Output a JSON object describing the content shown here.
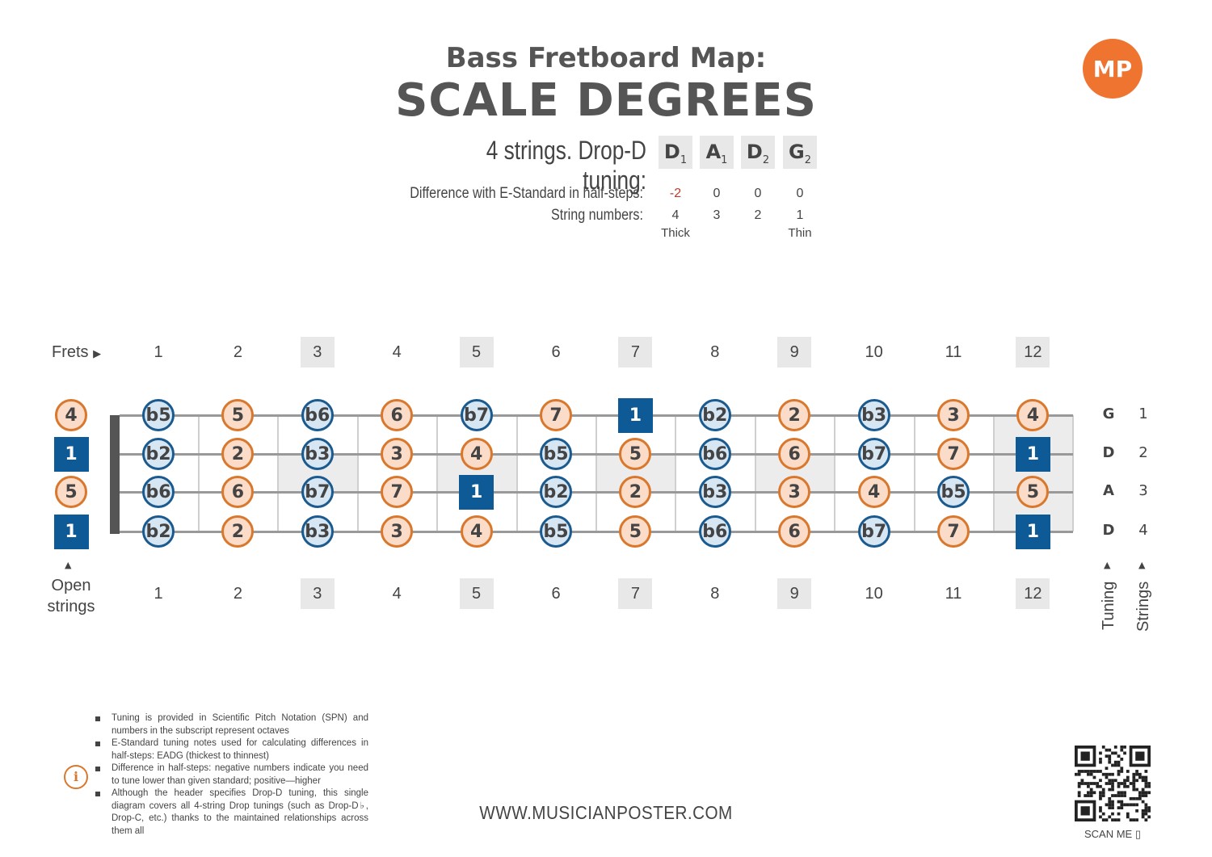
{
  "header": {
    "subtitle": "Bass Fretboard Map:",
    "title": "SCALE DEGREES",
    "logo_text": "MP",
    "tuning_label": "4 strings. Drop-D tuning:",
    "tuning_notes": [
      {
        "note": "D",
        "octave": "1"
      },
      {
        "note": "A",
        "octave": "1"
      },
      {
        "note": "D",
        "octave": "2"
      },
      {
        "note": "G",
        "octave": "2"
      }
    ],
    "difference_label": "Difference with E-Standard in half-steps:",
    "differences": [
      "-2",
      "0",
      "0",
      "0"
    ],
    "string_numbers_label": "String numbers:",
    "string_numbers": [
      "4",
      "3",
      "2",
      "1"
    ],
    "thick_label": "Thick",
    "thin_label": "Thin"
  },
  "fretboard": {
    "frets_label": "Frets",
    "fret_numbers": [
      "1",
      "2",
      "3",
      "4",
      "5",
      "6",
      "7",
      "8",
      "9",
      "10",
      "11",
      "12"
    ],
    "dotted_frets": [
      "3",
      "5",
      "7",
      "9",
      "12"
    ],
    "open_strings_label_1": "Open",
    "open_strings_label_2": "strings",
    "strings": [
      {
        "tuning": "G",
        "number": "1",
        "open": "4",
        "notes": [
          "b5",
          "5",
          "b6",
          "6",
          "b7",
          "7",
          "1",
          "b2",
          "2",
          "b3",
          "3",
          "4"
        ]
      },
      {
        "tuning": "D",
        "number": "2",
        "open": "1",
        "notes": [
          "b2",
          "2",
          "b3",
          "3",
          "4",
          "b5",
          "5",
          "b6",
          "6",
          "b7",
          "7",
          "1"
        ]
      },
      {
        "tuning": "A",
        "number": "3",
        "open": "5",
        "notes": [
          "b6",
          "6",
          "b7",
          "7",
          "1",
          "b2",
          "2",
          "b3",
          "3",
          "4",
          "b5",
          "5"
        ]
      },
      {
        "tuning": "D",
        "number": "4",
        "open": "1",
        "notes": [
          "b2",
          "2",
          "b3",
          "3",
          "4",
          "b5",
          "5",
          "b6",
          "6",
          "b7",
          "7",
          "1"
        ]
      }
    ],
    "tuning_axis_label": "Tuning",
    "strings_axis_label": "Strings",
    "colors": {
      "orange": "#d9782d",
      "blue": "#1a5a8e",
      "root": "#0d5a96"
    }
  },
  "footer": {
    "notes": [
      "Tuning is provided in Scientific Pitch Notation (SPN) and numbers in the subscript represent octaves",
      "E-Standard tuning notes used for calculating differences in half-steps: EADG (thickest to thinnest)",
      "Difference in half-steps: negative numbers indicate you need to tune lower than given standard; positive—higher",
      "Although the header specifies Drop-D tuning, this single diagram covers all 4-string Drop tunings (such as Drop-D♭, Drop-C, etc.) thanks to the maintained relationships across them all"
    ],
    "url": "WWW.MUSICIANPOSTER.COM",
    "scan_label": "SCAN ME"
  }
}
